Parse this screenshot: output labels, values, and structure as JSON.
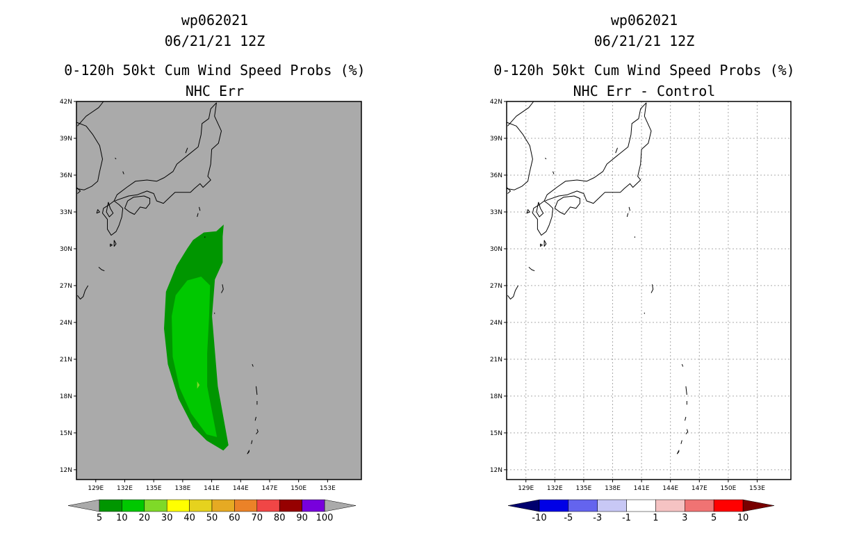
{
  "chart_data": [
    {
      "type": "heatmap",
      "title": [
        "wp062021",
        "06/21/21 12Z",
        "0-120h 50kt Cum Wind Speed Probs (%)",
        "NHC Err"
      ],
      "x_ticks": [
        "129E",
        "132E",
        "135E",
        "138E",
        "141E",
        "144E",
        "147E",
        "150E",
        "153E"
      ],
      "x_values": [
        129,
        132,
        135,
        138,
        141,
        144,
        147,
        150,
        153
      ],
      "y_ticks": [
        "42N",
        "39N",
        "36N",
        "33N",
        "30N",
        "27N",
        "24N",
        "21N",
        "18N",
        "15N",
        "12N"
      ],
      "y_values": [
        42,
        39,
        36,
        33,
        30,
        27,
        24,
        21,
        18,
        15,
        12
      ],
      "xlim": [
        127.0,
        156.5
      ],
      "ylim": [
        11.2,
        42.0
      ],
      "grid": false,
      "background": "#aaaaaa",
      "colorbar": {
        "labels": [
          "5",
          "10",
          "20",
          "30",
          "40",
          "50",
          "60",
          "70",
          "80",
          "90",
          "100"
        ],
        "colors": [
          "#009600",
          "#00c800",
          "#7fd928",
          "#ffff00",
          "#e6d21e",
          "#e6aa23",
          "#eb8228",
          "#f04646",
          "#960000",
          "#7800dc"
        ],
        "under": "#aaaaaa",
        "over": "#aaaaaa"
      },
      "regions": [
        {
          "label": "5-10%",
          "color": "#009600",
          "lonlat": [
            [
              139.1,
              30.7
            ],
            [
              140.2,
              31.3
            ],
            [
              141.5,
              31.4
            ],
            [
              142.2,
              31.9
            ],
            [
              142.1,
              31.0
            ],
            [
              142.1,
              28.9
            ],
            [
              141.3,
              27.5
            ],
            [
              141.0,
              24.5
            ],
            [
              141.6,
              18.8
            ],
            [
              142.7,
              14.0
            ],
            [
              142.2,
              13.6
            ],
            [
              140.5,
              14.4
            ],
            [
              139.1,
              15.5
            ],
            [
              137.6,
              17.8
            ],
            [
              136.5,
              20.6
            ],
            [
              136.1,
              23.5
            ],
            [
              136.3,
              26.5
            ],
            [
              137.4,
              28.6
            ],
            [
              138.5,
              30.0
            ]
          ]
        },
        {
          "label": "10-20%",
          "color": "#00c800",
          "lonlat": [
            [
              139.9,
              27.7
            ],
            [
              140.8,
              27.0
            ],
            [
              140.7,
              24.5
            ],
            [
              140.5,
              21.5
            ],
            [
              140.5,
              18.8
            ],
            [
              141.5,
              14.7
            ],
            [
              140.5,
              14.9
            ],
            [
              138.9,
              16.6
            ],
            [
              137.7,
              18.7
            ],
            [
              137.0,
              21.2
            ],
            [
              136.9,
              24.5
            ],
            [
              137.3,
              26.2
            ],
            [
              138.5,
              27.4
            ]
          ]
        }
      ]
    },
    {
      "type": "heatmap",
      "title": [
        "wp062021",
        "06/21/21 12Z",
        "0-120h 50kt Cum Wind Speed Probs (%)",
        "NHC Err - Control"
      ],
      "x_ticks": [
        "129E",
        "132E",
        "135E",
        "138E",
        "141E",
        "144E",
        "147E",
        "150E",
        "153E"
      ],
      "x_values": [
        129,
        132,
        135,
        138,
        141,
        144,
        147,
        150,
        153
      ],
      "y_ticks": [
        "42N",
        "39N",
        "36N",
        "33N",
        "30N",
        "27N",
        "24N",
        "21N",
        "18N",
        "15N",
        "12N"
      ],
      "y_values": [
        42,
        39,
        36,
        33,
        30,
        27,
        24,
        21,
        18,
        15,
        12
      ],
      "xlim": [
        127.0,
        156.5
      ],
      "ylim": [
        11.2,
        42.0
      ],
      "grid": true,
      "background": "#ffffff",
      "colorbar": {
        "labels": [
          "-10",
          "-5",
          "-3",
          "-1",
          "1",
          "3",
          "5",
          "10"
        ],
        "colors": [
          "#0000e6",
          "#6464ee",
          "#c8c8f5",
          "#ffffff",
          "#f5c3c3",
          "#f07373",
          "#ff0000"
        ],
        "under": "#00006e",
        "over": "#780000"
      },
      "regions": []
    }
  ]
}
